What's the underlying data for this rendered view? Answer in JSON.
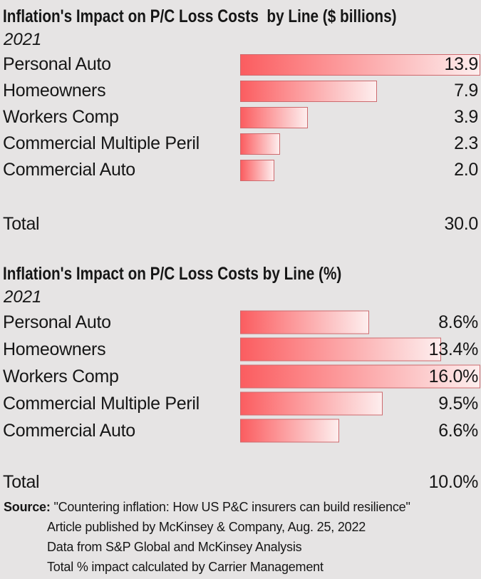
{
  "colors": {
    "background": "#e6e4e4",
    "text": "#161616",
    "bar_start": "#fb5d60",
    "bar_end": "#fdeeee",
    "bar_border": "#cd6a6e"
  },
  "chart_data": [
    {
      "type": "bar",
      "orientation": "horizontal",
      "title": "Inflation's Impact on P/C Loss Costs  by Line ($ billions)",
      "subtitle": "2021",
      "categories": [
        "Personal Auto",
        "Homeowners",
        "Workers Comp",
        "Commercial Multiple Peril",
        "Commercial Auto"
      ],
      "values": [
        13.9,
        7.9,
        3.9,
        2.3,
        2.0
      ],
      "value_labels": [
        "13.9",
        "7.9",
        "3.9",
        "2.3",
        "2.0"
      ],
      "xmax": 13.9,
      "xlim": [
        0,
        13.9
      ],
      "grid": false,
      "legend": false,
      "total_label": "Total",
      "total_value": 30.0,
      "total_display": "30.0"
    },
    {
      "type": "bar",
      "orientation": "horizontal",
      "title": "Inflation's Impact on P/C Loss Costs by Line (%)",
      "subtitle": "2021",
      "categories": [
        "Personal Auto",
        "Homeowners",
        "Workers Comp",
        "Commercial Multiple Peril",
        "Commercial Auto"
      ],
      "values": [
        8.6,
        13.4,
        16.0,
        9.5,
        6.6
      ],
      "value_labels": [
        "8.6%",
        "13.4%",
        "16.0%",
        "9.5%",
        "6.6%"
      ],
      "xmax": 16.0,
      "xlim": [
        0,
        16
      ],
      "grid": false,
      "legend": false,
      "total_label": "Total",
      "total_value": 10.0,
      "total_display": "10.0%"
    }
  ],
  "source": {
    "label": "Source:",
    "lines": [
      "\"Countering inflation: How US P&C insurers can build resilience\"",
      "Article published by McKinsey & Company, Aug. 25, 2022",
      "Data from S&P Global and McKinsey Analysis",
      "Total % impact calculated by Carrier Management"
    ]
  }
}
